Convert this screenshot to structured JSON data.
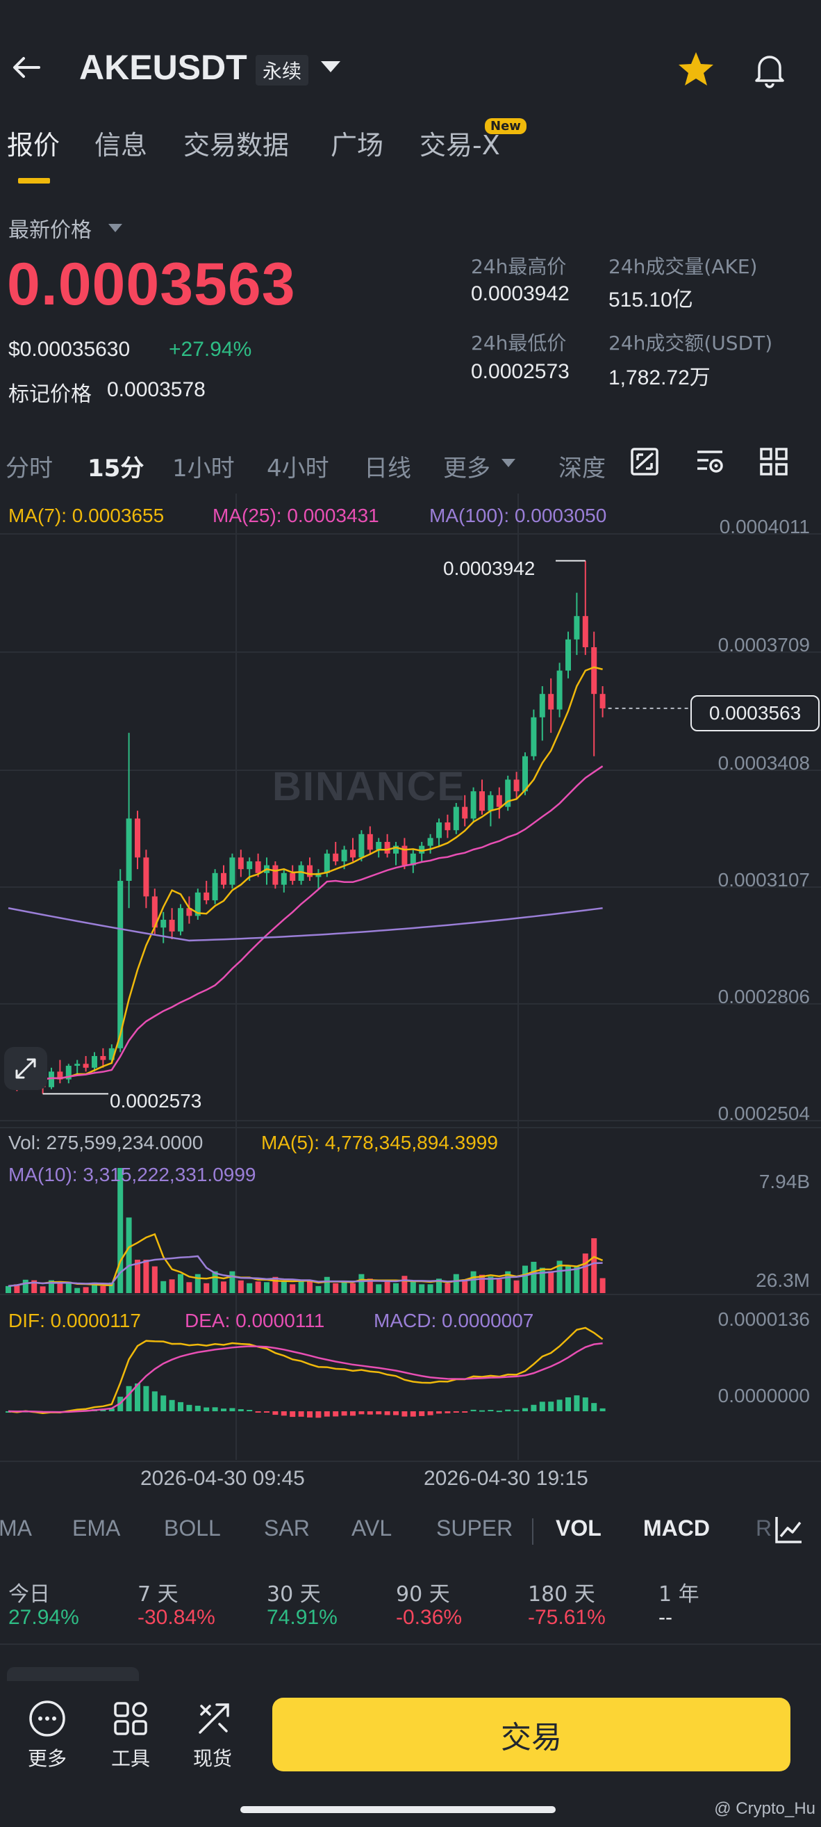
{
  "header": {
    "symbol": "AKEUSDT",
    "contract_type": "永续",
    "icons": [
      "back-arrow-icon",
      "caret-down-icon",
      "star-icon",
      "bell-icon"
    ],
    "star_color": "#f0b90b"
  },
  "tabs": [
    {
      "label": "报价",
      "active": true
    },
    {
      "label": "信息"
    },
    {
      "label": "交易数据"
    },
    {
      "label": "广场"
    },
    {
      "label": "交易-X",
      "badge": "New"
    }
  ],
  "price": {
    "label": "最新价格",
    "last": "0.0003563",
    "usd": "$0.00035630",
    "change": "+27.94%",
    "mark_label": "标记价格",
    "mark": "0.0003578",
    "color_down": "#f6465d",
    "color_up": "#2ebd85"
  },
  "stats": {
    "high_label": "24h最高价",
    "high": "0.0003942",
    "low_label": "24h最低价",
    "low": "0.0002573",
    "vol_label": "24h成交量(AKE)",
    "vol": "515.10亿",
    "amount_label": "24h成交额(USDT)",
    "amount": "1,782.72万"
  },
  "intervals": [
    {
      "label": "分时"
    },
    {
      "label": "15分",
      "active": true
    },
    {
      "label": "1小时"
    },
    {
      "label": "4小时"
    },
    {
      "label": "日线"
    },
    {
      "label": "更多"
    },
    {
      "label": "深度"
    }
  ],
  "toolbar_icons": [
    "chart-style-icon",
    "chart-settings-icon",
    "grid-layout-icon"
  ],
  "ma_legend": {
    "ma7": "MA(7): 0.0003655",
    "ma25": "MA(25): 0.0003431",
    "ma100": "MA(100): 0.0003050",
    "ma7_color": "#f0b90b",
    "ma25_color": "#e84fb4",
    "ma100_color": "#9b7fd8"
  },
  "price_axis": [
    "0.0004011",
    "0.0003709",
    "0.0003408",
    "0.0003107",
    "0.0002806",
    "0.0002504"
  ],
  "annotations": {
    "high": "0.0003942",
    "low": "0.0002573",
    "current": "0.0003563"
  },
  "watermark": "BINANCE",
  "volume": {
    "vol_legend": "Vol: 275,599,234.0000",
    "ma5_legend": "MA(5): 4,778,345,894.3999",
    "ma10_legend": "MA(10): 3,315,222,331.0999",
    "axis_top": "7.94B",
    "axis_bottom": "26.3M"
  },
  "macd": {
    "dif": "DIF: 0.0000117",
    "dea": "DEA: 0.0000111",
    "macd": "MACD: 0.0000007",
    "axis_top": "0.0000136",
    "axis_zero": "0.0000000"
  },
  "time_axis": [
    "2026-04-30 09:45",
    "2026-04-30 19:15"
  ],
  "indicators": [
    {
      "label": "MA"
    },
    {
      "label": "EMA"
    },
    {
      "label": "BOLL"
    },
    {
      "label": "SAR"
    },
    {
      "label": "AVL"
    },
    {
      "label": "SUPER"
    },
    {
      "label": "VOL",
      "active": true
    },
    {
      "label": "MACD",
      "active": true
    },
    {
      "label": "R"
    }
  ],
  "performance": [
    {
      "label": "今日",
      "value": "27.94%",
      "dir": "up"
    },
    {
      "label": "7 天",
      "value": "-30.84%",
      "dir": "down"
    },
    {
      "label": "30 天",
      "value": "74.91%",
      "dir": "up"
    },
    {
      "label": "90 天",
      "value": "-0.36%",
      "dir": "down"
    },
    {
      "label": "180 天",
      "value": "-75.61%",
      "dir": "down"
    },
    {
      "label": "1 年",
      "value": "--",
      "dir": "none"
    }
  ],
  "bottom_nav": [
    {
      "label": "更多",
      "icon": "more-dots-icon"
    },
    {
      "label": "工具",
      "icon": "tools-grid-icon"
    },
    {
      "label": "现货",
      "icon": "spot-swap-icon"
    }
  ],
  "trade_button": "交易",
  "credit": "@ Crypto_Hu",
  "chart_data": {
    "type": "candlestick",
    "candles_approx": [
      [
        0.000261,
        0.000264,
        0.000259,
        0.000262
      ],
      [
        0.000262,
        0.000263,
        0.000258,
        0.00026
      ],
      [
        0.00026,
        0.000265,
        0.000259,
        0.000264
      ],
      [
        0.000264,
        0.0002645,
        0.000259,
        0.00026
      ],
      [
        0.00026,
        0.000262,
        0.0002573,
        0.000259
      ],
      [
        0.000259,
        0.000264,
        0.0002585,
        0.000263
      ],
      [
        0.000263,
        0.000266,
        0.00026,
        0.000261
      ],
      [
        0.000261,
        0.000265,
        0.00026,
        0.0002645
      ],
      [
        0.0002645,
        0.000266,
        0.000262,
        0.000265
      ],
      [
        0.000265,
        0.000267,
        0.000263,
        0.000264
      ],
      [
        0.000264,
        0.000268,
        0.000263,
        0.000267
      ],
      [
        0.000267,
        0.000269,
        0.000264,
        0.000266
      ],
      [
        0.000266,
        0.00027,
        0.000265,
        0.000269
      ],
      [
        0.000269,
        0.000315,
        0.000268,
        0.000312
      ],
      [
        0.000312,
        0.00035,
        0.000305,
        0.000328
      ],
      [
        0.000328,
        0.00033,
        0.000315,
        0.000318
      ],
      [
        0.000318,
        0.00032,
        0.000305,
        0.000308
      ],
      [
        0.000308,
        0.00031,
        0.000298,
        0.0003
      ],
      [
        0.0003,
        0.000304,
        0.000296,
        0.000302
      ],
      [
        0.000302,
        0.000305,
        0.000297,
        0.000299
      ],
      [
        0.000299,
        0.000306,
        0.000298,
        0.000305
      ],
      [
        0.000305,
        0.000308,
        0.000301,
        0.000303
      ],
      [
        0.000303,
        0.00031,
        0.000302,
        0.000309
      ],
      [
        0.000309,
        0.000312,
        0.000306,
        0.000307
      ],
      [
        0.000307,
        0.000315,
        0.000306,
        0.000314
      ],
      [
        0.000314,
        0.000316,
        0.00031,
        0.000311
      ],
      [
        0.000311,
        0.000319,
        0.00031,
        0.000318
      ],
      [
        0.000318,
        0.00032,
        0.000313,
        0.000315
      ],
      [
        0.000315,
        0.000318,
        0.000312,
        0.000317
      ],
      [
        0.000317,
        0.000319,
        0.000313,
        0.000314
      ],
      [
        0.000314,
        0.000318,
        0.000311,
        0.000316
      ],
      [
        0.000316,
        0.000317,
        0.00031,
        0.000311
      ],
      [
        0.000311,
        0.000315,
        0.000309,
        0.000314
      ],
      [
        0.000314,
        0.000316,
        0.000311,
        0.000312
      ],
      [
        0.000312,
        0.000317,
        0.000311,
        0.000316
      ],
      [
        0.000316,
        0.000318,
        0.000312,
        0.000313
      ],
      [
        0.000313,
        0.000315,
        0.00031,
        0.000314
      ],
      [
        0.000314,
        0.00032,
        0.000313,
        0.000319
      ],
      [
        0.000319,
        0.000322,
        0.000316,
        0.000317
      ],
      [
        0.000317,
        0.000321,
        0.000315,
        0.00032
      ],
      [
        0.00032,
        0.000323,
        0.000317,
        0.000318
      ],
      [
        0.000318,
        0.000325,
        0.000317,
        0.000324
      ],
      [
        0.000324,
        0.000326,
        0.000319,
        0.00032
      ],
      [
        0.00032,
        0.000323,
        0.000318,
        0.000322
      ],
      [
        0.000322,
        0.000324,
        0.000318,
        0.000319
      ],
      [
        0.000319,
        0.000322,
        0.000316,
        0.000321
      ],
      [
        0.000321,
        0.000323,
        0.000315,
        0.000316
      ],
      [
        0.000316,
        0.00032,
        0.000314,
        0.000319
      ],
      [
        0.000319,
        0.000322,
        0.000317,
        0.000321
      ],
      [
        0.000321,
        0.000324,
        0.000319,
        0.000323
      ],
      [
        0.000323,
        0.000328,
        0.000321,
        0.000327
      ],
      [
        0.000327,
        0.000329,
        0.000323,
        0.000325
      ],
      [
        0.000325,
        0.000332,
        0.000324,
        0.000331
      ],
      [
        0.000331,
        0.000334,
        0.000326,
        0.000328
      ],
      [
        0.000328,
        0.000336,
        0.000327,
        0.000335
      ],
      [
        0.000335,
        0.000338,
        0.000329,
        0.00033
      ],
      [
        0.00033,
        0.000335,
        0.000326,
        0.000334
      ],
      [
        0.000334,
        0.000336,
        0.000328,
        0.000331
      ],
      [
        0.000331,
        0.000339,
        0.00033,
        0.000338
      ],
      [
        0.000338,
        0.00034,
        0.000333,
        0.000335
      ],
      [
        0.000335,
        0.000345,
        0.000334,
        0.000344
      ],
      [
        0.000344,
        0.000356,
        0.000343,
        0.000354
      ],
      [
        0.000354,
        0.000362,
        0.000348,
        0.00036
      ],
      [
        0.00036,
        0.000364,
        0.00035,
        0.000356
      ],
      [
        0.000356,
        0.000368,
        0.000354,
        0.000366
      ],
      [
        0.000366,
        0.000376,
        0.000364,
        0.000374
      ],
      [
        0.000374,
        0.000386,
        0.00037,
        0.00038
      ],
      [
        0.00038,
        0.0003942,
        0.00037,
        0.000372
      ],
      [
        0.000372,
        0.000376,
        0.000344,
        0.00036
      ],
      [
        0.00036,
        0.000362,
        0.000354,
        0.0003563
      ]
    ],
    "y_range": [
      0.0002504,
      0.0004011
    ],
    "ma_series": [
      "MA(7)",
      "MA(25)",
      "MA(100)"
    ],
    "volume_range": [
      "26.3M",
      "7.94B"
    ],
    "macd_range": [
      "0.0000000",
      "0.0000136"
    ],
    "x_labels": [
      "2026-04-30 09:45",
      "2026-04-30 19:15"
    ]
  }
}
